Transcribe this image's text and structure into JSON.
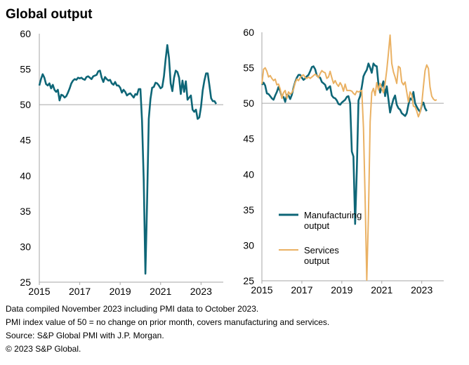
{
  "title": "Global output",
  "colors": {
    "manufacturing": "#0e6677",
    "services": "#eab163",
    "axis": "#a6a6a6"
  },
  "chart_data": [
    {
      "type": "line",
      "id": "left",
      "title": "",
      "xlabel": "",
      "ylabel": "",
      "ylim": [
        25,
        60
      ],
      "yticks": [
        25,
        30,
        35,
        40,
        45,
        50,
        55,
        60
      ],
      "xlim": [
        2015,
        2024.1
      ],
      "xticks": [
        2015,
        2017,
        2019,
        2021,
        2023
      ],
      "reference_line": 50,
      "series": [
        {
          "name": "Global output",
          "color_key": "manufacturing",
          "x_start": 2015,
          "step": 0.08333,
          "values": [
            52.7,
            53.6,
            54.3,
            53.8,
            52.9,
            52.7,
            53.0,
            52.3,
            52.8,
            52.1,
            51.8,
            52.1,
            50.6,
            51.4,
            51.3,
            51.0,
            51.2,
            51.7,
            52.3,
            53.0,
            53.4,
            53.6,
            53.5,
            53.8,
            53.7,
            53.8,
            53.6,
            53.5,
            53.9,
            54.0,
            53.8,
            53.6,
            54.0,
            54.1,
            54.2,
            54.7,
            54.8,
            53.8,
            53.2,
            53.9,
            53.6,
            53.4,
            53.5,
            53.0,
            52.8,
            53.2,
            52.7,
            52.7,
            52.4,
            51.7,
            52.1,
            51.8,
            51.3,
            51.5,
            51.6,
            51.3,
            51.0,
            51.5,
            51.4,
            52.2,
            52.2,
            47.7,
            39.4,
            26.2,
            36.3,
            48.0,
            50.8,
            52.4,
            52.5,
            53.1,
            53.0,
            52.7,
            52.3,
            52.5,
            54.0,
            56.4,
            58.4,
            56.6,
            53.0,
            51.9,
            53.8,
            54.8,
            54.6,
            53.8,
            51.5,
            53.4,
            51.8,
            53.3,
            50.7,
            51.0,
            51.3,
            49.3,
            49.0,
            49.3,
            48.0,
            48.2,
            49.7,
            52.0,
            53.4,
            54.4,
            54.4,
            52.7,
            50.9,
            50.5,
            50.5,
            50.1
          ]
        }
      ]
    },
    {
      "type": "line",
      "id": "right",
      "title": "",
      "xlabel": "",
      "ylabel": "",
      "ylim": [
        25,
        60
      ],
      "yticks": [
        25,
        30,
        35,
        40,
        45,
        50,
        55,
        60
      ],
      "xlim": [
        2015,
        2024.1
      ],
      "xticks": [
        2015,
        2017,
        2019,
        2021,
        2023
      ],
      "reference_line": 50,
      "legend_position": "center-left",
      "series": [
        {
          "name": "Manufacturing output",
          "legend_lines": [
            "Manufacturing",
            "output"
          ],
          "color_key": "manufacturing",
          "x_start": 2015,
          "step": 0.08333,
          "values": [
            52.6,
            52.9,
            52.5,
            51.4,
            51.3,
            51.0,
            50.7,
            50.5,
            51.1,
            51.6,
            52.3,
            51.7,
            50.9,
            50.9,
            50.2,
            51.2,
            51.1,
            50.6,
            51.2,
            52.2,
            53.0,
            53.6,
            54.0,
            54.0,
            53.6,
            53.3,
            53.5,
            53.8,
            54.0,
            54.5,
            55.1,
            55.2,
            54.8,
            53.9,
            53.7,
            53.6,
            53.0,
            52.8,
            52.6,
            51.9,
            52.2,
            52.4,
            51.1,
            50.8,
            50.7,
            50.4,
            49.9,
            49.8,
            50.1,
            50.3,
            50.5,
            50.9,
            51.0,
            50.0,
            43.2,
            42.5,
            33.0,
            40.5,
            50.4,
            51.0,
            52.3,
            53.8,
            54.3,
            54.7,
            55.6,
            55.0,
            54.3,
            55.6,
            55.3,
            55.2,
            52.7,
            51.5,
            52.4,
            53.1,
            51.0,
            52.4,
            50.6,
            48.7,
            49.7,
            50.6,
            51.1,
            49.8,
            49.3,
            49.1,
            48.6,
            48.4,
            48.2,
            48.6,
            49.8,
            50.7,
            50.5,
            51.6,
            50.0,
            49.5,
            49.1,
            48.8,
            49.7,
            50.1,
            49.3,
            48.9
          ]
        },
        {
          "name": "Services output",
          "legend_lines": [
            "Services",
            "output"
          ],
          "color_key": "services",
          "x_start": 2015,
          "step": 0.08333,
          "values": [
            52.7,
            54.8,
            55.0,
            54.5,
            53.7,
            53.9,
            53.5,
            53.2,
            53.4,
            52.6,
            52.7,
            52.0,
            50.7,
            51.5,
            51.8,
            50.7,
            51.6,
            51.3,
            51.5,
            52.0,
            52.9,
            53.4,
            53.2,
            53.6,
            53.9,
            54.0,
            53.6,
            53.5,
            53.7,
            53.5,
            53.7,
            53.9,
            54.1,
            53.9,
            53.6,
            54.2,
            54.6,
            54.4,
            54.3,
            53.5,
            53.7,
            54.5,
            53.6,
            52.8,
            53.2,
            52.7,
            52.4,
            52.9,
            52.5,
            51.7,
            52.7,
            51.8,
            51.8,
            51.8,
            51.7,
            51.4,
            51.2,
            51.7,
            51.6,
            51.7,
            51.8,
            46.5,
            36.8,
            25.1,
            34.3,
            47.4,
            51.5,
            52.1,
            51.1,
            52.9,
            51.9,
            52.8,
            52.1,
            51.5,
            52.8,
            54.7,
            57.0,
            59.6,
            55.6,
            54.4,
            53.7,
            52.8,
            55.2,
            55.0,
            53.0,
            52.6,
            53.0,
            51.6,
            50.2,
            51.6,
            51.2,
            49.6,
            49.5,
            48.9,
            48.1,
            48.7,
            49.9,
            52.4,
            54.6,
            55.4,
            54.9,
            52.3,
            51.0,
            50.6,
            50.4,
            50.5
          ]
        }
      ]
    }
  ],
  "notes": [
    "Data compiled November 2023 including PMI data to October 2023.",
    "PMI index value of 50 = no change on prior month, covers manufacturing and services.",
    "Source: S&P Global PMI with J.P. Morgan.",
    "© 2023 S&P Global."
  ]
}
